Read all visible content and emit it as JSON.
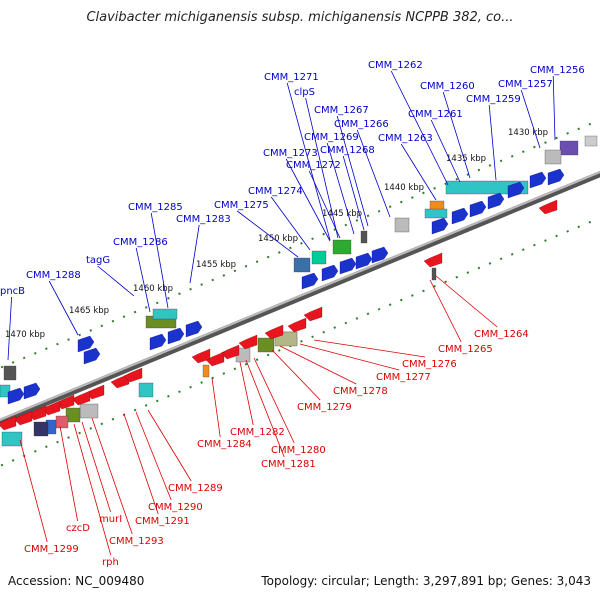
{
  "title": "Clavibacter michiganensis subsp. michiganensis NCPPB 382, co...",
  "accession": "Accession: NC_009480",
  "summary": "Topology: circular; Length: 3,297,891 bp; Genes: 3,043",
  "colors": {
    "forward_label": "#0000cc",
    "reverse_label": "#dd0000",
    "tick": "#2e7d2e",
    "backbone": "#777777"
  },
  "tick_labels": [
    "1430 kbp",
    "1435 kbp",
    "1440 kbp",
    "1445 kbp",
    "1450 kbp",
    "1455 kbp",
    "1460 kbp",
    "1465 kbp",
    "1470 kbp"
  ],
  "forward_genes": [
    "CMM_1256",
    "CMM_1257",
    "CMM_1259",
    "CMM_1260",
    "CMM_1261",
    "CMM_1262",
    "CMM_1263",
    "CMM_1266",
    "CMM_1267",
    "CMM_1268",
    "CMM_1269",
    "clpS",
    "CMM_1271",
    "CMM_1272",
    "CMM_1273",
    "CMM_1274",
    "CMM_1275",
    "CMM_1283",
    "CMM_1285",
    "CMM_1286",
    "tagG",
    "CMM_1288",
    "pncB"
  ],
  "reverse_genes": [
    "CMM_1264",
    "CMM_1265",
    "CMM_1276",
    "CMM_1277",
    "CMM_1278",
    "CMM_1279",
    "CMM_1280",
    "CMM_1281",
    "CMM_1282",
    "CMM_1284",
    "CMM_1289",
    "CMM_1290",
    "CMM_1291",
    "CMM_1293",
    "murI",
    "rph",
    "czcD",
    "CMM_1299"
  ]
}
